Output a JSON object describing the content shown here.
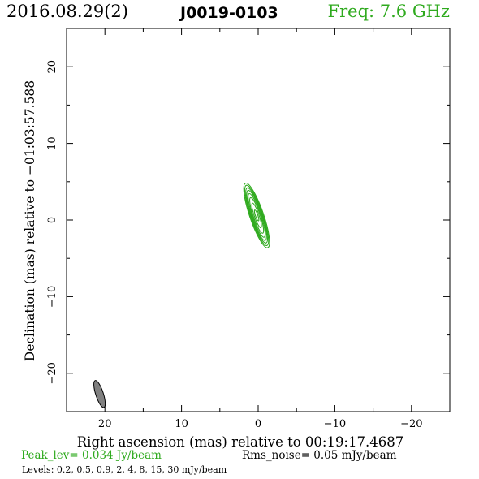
{
  "header": {
    "date": "2016.08.29(2)",
    "source": "J0019-0103",
    "frequency": "Freq: 7.6 GHz",
    "frequency_color": "#2faa1e"
  },
  "footer": {
    "peak": "Peak_lev=  0.034 Jy/beam",
    "rms": "Rms_noise= 0.05 mJy/beam",
    "levels": "Levels: 0.2,  0.5,  0.9,    2,    4,    8,   15,   30 mJy/beam"
  },
  "chart_data": {
    "type": "contour",
    "xlabel": "Right ascension (mas) relative to 00:19:17.4687",
    "ylabel": "Declination (mas) relative to −01:03:57.588",
    "xlim": [
      25,
      -25
    ],
    "ylim": [
      -25,
      25
    ],
    "x_ticks": [
      20,
      10,
      0,
      -10,
      -20
    ],
    "x_tick_labels": [
      "20",
      "10",
      "0",
      "−10",
      "−20"
    ],
    "y_ticks": [
      20,
      10,
      0,
      -10,
      -20
    ],
    "y_tick_labels": [
      "20",
      "10",
      "0",
      "−10",
      "−20"
    ],
    "contour_color": "#2faa1e",
    "contour_levels_mJy": [
      0.2,
      0.5,
      0.9,
      2,
      4,
      8,
      15,
      30
    ],
    "source_component": {
      "center": [
        0.2,
        0.6
      ],
      "contours": [
        {
          "level": 0.2,
          "major": 8.9,
          "minor": 1.8,
          "pa": 19
        },
        {
          "level": 0.5,
          "major": 8.3,
          "minor": 1.6,
          "pa": 19
        },
        {
          "level": 0.9,
          "major": 7.6,
          "minor": 1.45,
          "pa": 19
        },
        {
          "level": 2,
          "major": 6.9,
          "minor": 1.3,
          "pa": 19
        },
        {
          "level": 4,
          "major": 6.0,
          "minor": 1.1,
          "pa": 19
        },
        {
          "level": 8,
          "major": 4.9,
          "minor": 0.9,
          "pa": 19
        },
        {
          "level": 15,
          "major": 3.4,
          "minor": 0.62,
          "pa": 19
        },
        {
          "level": 30,
          "major": 1.5,
          "minor": 0.32,
          "pa": 19
        }
      ]
    },
    "beam": {
      "center": [
        20.7,
        -22.7
      ],
      "major": 3.7,
      "minor": 1.0,
      "pa": 18,
      "color": "#808080"
    }
  }
}
